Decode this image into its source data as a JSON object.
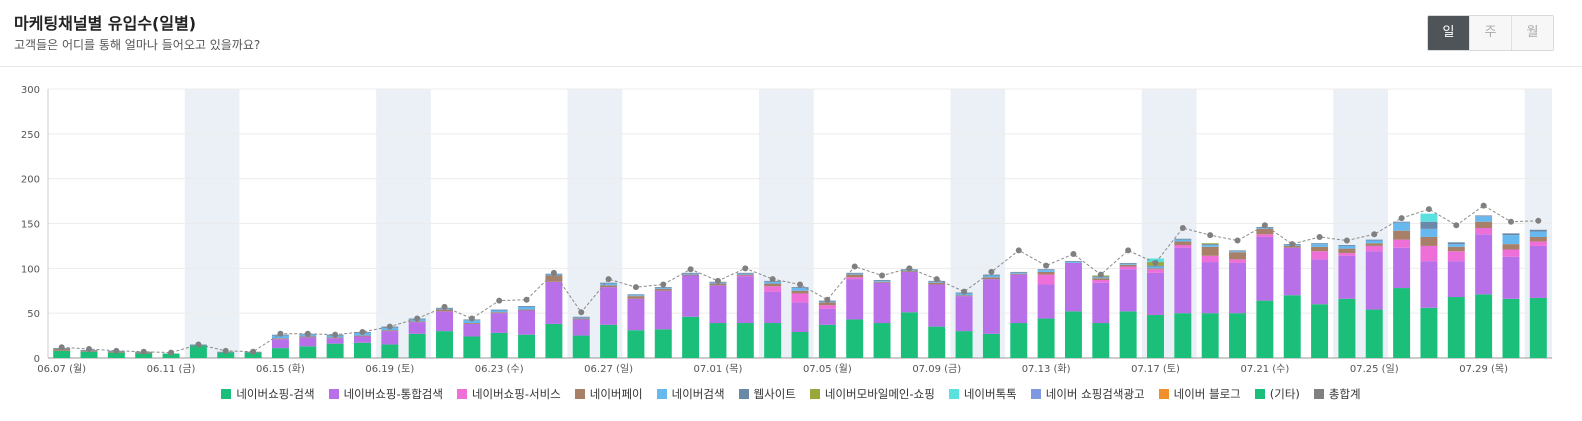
{
  "header": {
    "title": "마케팅채널별 유입수(일별)",
    "subtitle": "고객들은 어디를 통해 얼마나 들어오고 있을까요?"
  },
  "period_buttons": [
    {
      "label": "일",
      "active": true
    },
    {
      "label": "주",
      "active": false
    },
    {
      "label": "월",
      "active": false
    }
  ],
  "chart_data": {
    "type": "bar",
    "stacked": true,
    "ylim": [
      0,
      300
    ],
    "yticks": [
      0,
      50,
      100,
      150,
      200,
      250,
      300
    ],
    "grid": true,
    "legend_position": "bottom",
    "xtick_labels": [
      "06.07 (월)",
      "06.11 (금)",
      "06.15 (화)",
      "06.19 (토)",
      "06.23 (수)",
      "06.27 (일)",
      "07.01 (목)",
      "07.05 (월)",
      "07.09 (금)",
      "07.13 (화)",
      "07.17 (토)",
      "07.21 (수)",
      "07.25 (일)",
      "07.29 (목)"
    ],
    "categories": [
      "06.07",
      "06.08",
      "06.09",
      "06.10",
      "06.11",
      "06.12",
      "06.13",
      "06.14",
      "06.15",
      "06.16",
      "06.17",
      "06.18",
      "06.19",
      "06.20",
      "06.21",
      "06.22",
      "06.23",
      "06.24",
      "06.25",
      "06.26",
      "06.27",
      "06.28",
      "06.29",
      "06.30",
      "07.01",
      "07.02",
      "07.03",
      "07.04",
      "07.05",
      "07.06",
      "07.07",
      "07.08",
      "07.09",
      "07.10",
      "07.11",
      "07.12",
      "07.13",
      "07.14",
      "07.15",
      "07.16",
      "07.17",
      "07.18",
      "07.19",
      "07.20",
      "07.21",
      "07.22",
      "07.23",
      "07.24",
      "07.25",
      "07.26",
      "07.27",
      "07.28",
      "07.29",
      "07.30",
      "07.31"
    ],
    "weekend_bands": [
      [
        5,
        6
      ],
      [
        12,
        13
      ],
      [
        19,
        20
      ],
      [
        26,
        27
      ],
      [
        33,
        34
      ],
      [
        40,
        41
      ],
      [
        47,
        48
      ],
      [
        54,
        54
      ]
    ],
    "series": [
      {
        "name": "네이버쇼핑-검색",
        "color": "#1bbf7a",
        "values": [
          8,
          7,
          6,
          5,
          5,
          14,
          6,
          6,
          11,
          13,
          16,
          17,
          15,
          27,
          30,
          24,
          28,
          26,
          38,
          25,
          37,
          31,
          32,
          46,
          39,
          39,
          39,
          29,
          37,
          43,
          39,
          51,
          35,
          30,
          27,
          39,
          44,
          52,
          39,
          52,
          48,
          50,
          50,
          50,
          64,
          70,
          60,
          66,
          54,
          78,
          56,
          68,
          71,
          66,
          67
        ]
      },
      {
        "name": "네이버쇼핑-통합검색",
        "color": "#b870e8",
        "values": [
          0,
          0,
          0,
          0,
          0,
          0,
          0,
          0,
          10,
          10,
          6,
          7,
          15,
          13,
          22,
          14,
          22,
          27,
          47,
          18,
          42,
          35,
          43,
          46,
          42,
          52,
          35,
          33,
          18,
          45,
          45,
          45,
          47,
          39,
          61,
          54,
          38,
          54,
          45,
          47,
          47,
          73,
          57,
          56,
          71,
          53,
          50,
          48,
          65,
          45,
          52,
          40,
          67,
          47,
          58
        ]
      },
      {
        "name": "네이버쇼핑-서비스",
        "color": "#ef6fd8",
        "values": [
          0,
          0,
          0,
          0,
          0,
          0,
          0,
          0,
          0,
          0,
          0,
          0,
          0,
          0,
          0,
          0,
          0,
          0,
          0,
          0,
          0,
          0,
          0,
          0,
          0,
          1,
          6,
          10,
          4,
          2,
          0,
          0,
          0,
          0,
          0,
          0,
          11,
          0,
          3,
          3,
          4,
          3,
          7,
          4,
          3,
          0,
          9,
          3,
          6,
          9,
          17,
          11,
          7,
          8,
          5
        ]
      },
      {
        "name": "네이버페이",
        "color": "#a88068",
        "values": [
          2,
          1,
          1,
          1,
          0,
          0,
          0,
          0,
          1,
          1,
          1,
          1,
          1,
          1,
          2,
          1,
          1,
          1,
          7,
          1,
          2,
          3,
          2,
          1,
          2,
          1,
          3,
          3,
          3,
          3,
          1,
          1,
          2,
          1,
          2,
          1,
          3,
          0,
          2,
          2,
          1,
          4,
          10,
          8,
          6,
          2,
          5,
          5,
          3,
          10,
          10,
          5,
          7,
          6,
          5
        ]
      },
      {
        "name": "네이버검색",
        "color": "#68b8f0",
        "values": [
          0,
          0,
          0,
          0,
          0,
          0,
          0,
          0,
          3,
          2,
          2,
          3,
          3,
          2,
          1,
          3,
          2,
          3,
          1,
          1,
          2,
          1,
          1,
          1,
          1,
          1,
          2,
          3,
          1,
          1,
          1,
          1,
          1,
          2,
          2,
          1,
          2,
          1,
          1,
          1,
          2,
          2,
          2,
          1,
          1,
          1,
          3,
          3,
          3,
          9,
          9,
          3,
          6,
          10,
          6
        ]
      },
      {
        "name": "웹사이트",
        "color": "#6a89a8",
        "values": [
          1,
          1,
          1,
          1,
          0,
          1,
          1,
          1,
          1,
          1,
          1,
          1,
          1,
          1,
          1,
          1,
          1,
          1,
          1,
          1,
          1,
          1,
          1,
          1,
          1,
          1,
          1,
          1,
          1,
          1,
          1,
          1,
          1,
          1,
          1,
          1,
          1,
          1,
          1,
          1,
          1,
          1,
          1,
          1,
          1,
          1,
          1,
          1,
          1,
          1,
          8,
          2,
          1,
          2,
          2
        ]
      },
      {
        "name": "네이버모바일메인-쇼핑",
        "color": "#9aa83a",
        "values": [
          0,
          0,
          0,
          0,
          0,
          0,
          0,
          0,
          0,
          0,
          0,
          0,
          0,
          0,
          0,
          0,
          0,
          0,
          0,
          0,
          0,
          0,
          0,
          0,
          0,
          0,
          0,
          0,
          0,
          0,
          0,
          0,
          0,
          0,
          0,
          0,
          0,
          0,
          1,
          0,
          4,
          0,
          1,
          0,
          0,
          0,
          0,
          0,
          0,
          0,
          0,
          0,
          0,
          0,
          0
        ]
      },
      {
        "name": "네이버톡톡",
        "color": "#5be0e0",
        "values": [
          0,
          0,
          0,
          0,
          0,
          0,
          0,
          0,
          0,
          0,
          0,
          0,
          0,
          0,
          0,
          0,
          0,
          0,
          0,
          0,
          0,
          0,
          0,
          0,
          0,
          0,
          0,
          0,
          0,
          0,
          0,
          0,
          0,
          0,
          0,
          0,
          0,
          0,
          0,
          0,
          4,
          0,
          0,
          0,
          0,
          0,
          0,
          0,
          0,
          0,
          9,
          0,
          0,
          0,
          0
        ]
      },
      {
        "name": "네이버 쇼핑검색광고",
        "color": "#7f98e2",
        "values": [
          0,
          0,
          0,
          0,
          0,
          0,
          0,
          0,
          0,
          0,
          0,
          0,
          0,
          0,
          0,
          0,
          0,
          0,
          0,
          0,
          0,
          0,
          0,
          0,
          0,
          0,
          0,
          0,
          0,
          0,
          0,
          0,
          0,
          0,
          0,
          0,
          0,
          0,
          0,
          0,
          0,
          0,
          0,
          0,
          0,
          0,
          0,
          0,
          0,
          0,
          0,
          0,
          0,
          0,
          0
        ]
      },
      {
        "name": "네이버 블로그",
        "color": "#f0902a",
        "values": [
          0,
          0,
          0,
          0,
          0,
          0,
          0,
          0,
          0,
          0,
          0,
          0,
          0,
          0,
          0,
          0,
          0,
          0,
          0,
          0,
          0,
          0,
          0,
          0,
          0,
          0,
          0,
          0,
          0,
          0,
          0,
          0,
          0,
          0,
          0,
          0,
          0,
          0,
          0,
          0,
          0,
          0,
          0,
          0,
          0,
          0,
          0,
          0,
          0,
          0,
          0,
          0,
          0,
          0,
          0
        ]
      },
      {
        "name": "(기타)",
        "color": "#1bbf7a",
        "values": [
          0,
          0,
          0,
          0,
          0,
          0,
          0,
          0,
          0,
          0,
          0,
          0,
          0,
          0,
          0,
          0,
          0,
          0,
          0,
          0,
          0,
          0,
          0,
          0,
          0,
          0,
          0,
          0,
          0,
          0,
          0,
          0,
          0,
          0,
          0,
          0,
          0,
          0,
          0,
          0,
          0,
          0,
          0,
          0,
          0,
          0,
          0,
          0,
          0,
          0,
          0,
          0,
          0,
          0,
          0
        ]
      }
    ],
    "total_series": {
      "name": "총합계",
      "color": "#808080",
      "values": [
        12,
        10,
        8,
        7,
        6,
        15,
        8,
        7,
        27,
        27,
        26,
        29,
        35,
        44,
        57,
        44,
        64,
        65,
        95,
        51,
        88,
        79,
        82,
        99,
        86,
        100,
        88,
        82,
        65,
        102,
        92,
        100,
        88,
        74,
        96,
        120,
        103,
        116,
        93,
        120,
        106,
        145,
        137,
        131,
        148,
        127,
        135,
        131,
        138,
        156,
        166,
        148,
        170,
        152,
        153
      ]
    }
  }
}
